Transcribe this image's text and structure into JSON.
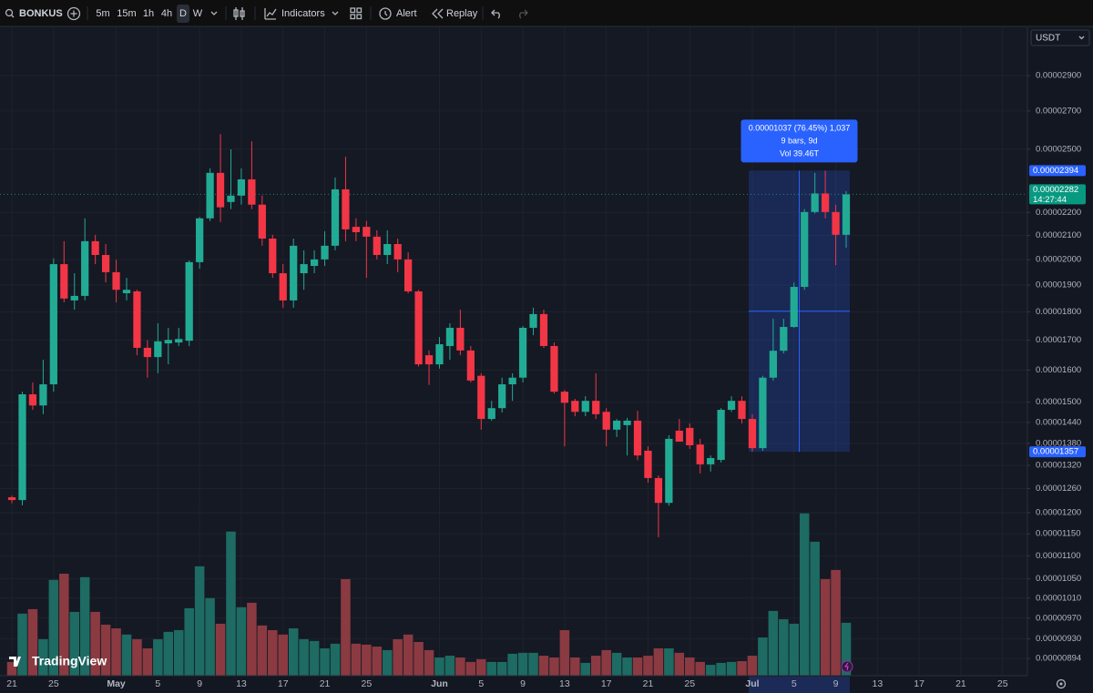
{
  "toolbar": {
    "symbol": "BONKUS",
    "intervals": [
      "5m",
      "15m",
      "1h",
      "4h",
      "D",
      "W"
    ],
    "active_interval": "D",
    "indicators": "Indicators",
    "alert": "Alert",
    "replay": "Replay"
  },
  "currency": "USDT",
  "logo": "TradingView",
  "chart_data": {
    "type": "candlestick",
    "log_scale": true,
    "grid": true,
    "up_color": "#22ab94",
    "down_color": "#f23645",
    "volume_up_color": "#1d6b63",
    "volume_down_color": "#8b3a41",
    "xlim": [
      -1.14,
      97.38
    ],
    "ylim": [
      8.635e-06,
      3.197e-05
    ],
    "xticks": [
      {
        "value": 0,
        "label": "21"
      },
      {
        "value": 4,
        "label": "25"
      },
      {
        "value": 10,
        "label": "May"
      },
      {
        "value": 14,
        "label": "5"
      },
      {
        "value": 18,
        "label": "9"
      },
      {
        "value": 22,
        "label": "13"
      },
      {
        "value": 26,
        "label": "17"
      },
      {
        "value": 30,
        "label": "21"
      },
      {
        "value": 34,
        "label": "25"
      },
      {
        "value": 41,
        "label": "Jun"
      },
      {
        "value": 45,
        "label": "5"
      },
      {
        "value": 49,
        "label": "9"
      },
      {
        "value": 53,
        "label": "13"
      },
      {
        "value": 57,
        "label": "17"
      },
      {
        "value": 61,
        "label": "21"
      },
      {
        "value": 65,
        "label": "25"
      },
      {
        "value": 71,
        "label": "Jul"
      },
      {
        "value": 75,
        "label": "5"
      },
      {
        "value": 79,
        "label": "9"
      },
      {
        "value": 83,
        "label": "13"
      },
      {
        "value": 87,
        "label": "17"
      },
      {
        "value": 91,
        "label": "21"
      },
      {
        "value": 95,
        "label": "25"
      }
    ],
    "yticks": [
      {
        "value": 2.9e-05,
        "label": "0.00002900"
      },
      {
        "value": 2.7e-05,
        "label": "0.00002700"
      },
      {
        "value": 2.5e-05,
        "label": "0.00002500"
      },
      {
        "value": 2.2e-05,
        "label": "0.00002200"
      },
      {
        "value": 2.1e-05,
        "label": "0.00002100"
      },
      {
        "value": 2e-05,
        "label": "0.00002000"
      },
      {
        "value": 1.9e-05,
        "label": "0.00001900"
      },
      {
        "value": 1.8e-05,
        "label": "0.00001800"
      },
      {
        "value": 1.7e-05,
        "label": "0.00001700"
      },
      {
        "value": 1.6e-05,
        "label": "0.00001600"
      },
      {
        "value": 1.5e-05,
        "label": "0.00001500"
      },
      {
        "value": 1.44e-05,
        "label": "0.00001440"
      },
      {
        "value": 1.38e-05,
        "label": "0.00001380"
      },
      {
        "value": 1.32e-05,
        "label": "0.00001320"
      },
      {
        "value": 1.26e-05,
        "label": "0.00001260"
      },
      {
        "value": 1.2e-05,
        "label": "0.00001200"
      },
      {
        "value": 1.15e-05,
        "label": "0.00001150"
      },
      {
        "value": 1.1e-05,
        "label": "0.00001100"
      },
      {
        "value": 1.05e-05,
        "label": "0.00001050"
      },
      {
        "value": 1.01e-05,
        "label": "0.00001010"
      },
      {
        "value": 9.7e-06,
        "label": "0.00000970"
      },
      {
        "value": 9.3e-06,
        "label": "0.00000930"
      },
      {
        "value": 8.94e-06,
        "label": "0.00000894"
      }
    ],
    "x": [
      0,
      1,
      2,
      3,
      4,
      5,
      6,
      7,
      8,
      9,
      10,
      11,
      12,
      13,
      14,
      15,
      16,
      17,
      18,
      19,
      20,
      21,
      22,
      23,
      24,
      25,
      26,
      27,
      28,
      29,
      30,
      31,
      32,
      33,
      34,
      35,
      36,
      37,
      38,
      39,
      40,
      41,
      42,
      43,
      44,
      45,
      46,
      47,
      48,
      49,
      50,
      51,
      52,
      53,
      54,
      55,
      56,
      57,
      58,
      59,
      60,
      61,
      62,
      63,
      64,
      65,
      66,
      67,
      68,
      69,
      70,
      71,
      72,
      73,
      74,
      75,
      76,
      77,
      78,
      79,
      80
    ],
    "open": [
      1.238e-05,
      1.231e-05,
      1.524e-05,
      1.49e-05,
      1.555e-05,
      1.982e-05,
      1.842e-05,
      1.859e-05,
      2.076e-05,
      2.019e-05,
      1.95e-05,
      1.869e-05,
      1.876e-05,
      1.674e-05,
      1.643e-05,
      1.689e-05,
      1.692e-05,
      1.698e-05,
      1.99e-05,
      2.174e-05,
      2.383e-05,
      2.247e-05,
      2.276e-05,
      2.352e-05,
      2.235e-05,
      2.087e-05,
      1.946e-05,
      1.842e-05,
      1.946e-05,
      1.975e-05,
      2.001e-05,
      2.057e-05,
      2.305e-05,
      2.137e-05,
      2.137e-05,
      2.095e-05,
      2.019e-05,
      2.064e-05,
      2.001e-05,
      1.876e-05,
      1.649e-05,
      1.619e-05,
      1.68e-05,
      1.743e-05,
      1.665e-05,
      1.582e-05,
      1.45e-05,
      1.482e-05,
      1.555e-05,
      1.576e-05,
      1.743e-05,
      1.792e-05,
      1.68e-05,
      1.532e-05,
      1.504e-05,
      1.471e-05,
      1.504e-05,
      1.471e-05,
      1.419e-05,
      1.432e-05,
      1.445e-05,
      1.36e-05,
      1.287e-05,
      1.224e-05,
      1.416e-05,
      1.424e-05,
      1.377e-05,
      1.323e-05,
      1.335e-05,
      1.477e-05,
      1.504e-05,
      1.45e-05,
      1.367e-05,
      1.576e-05,
      1.664e-05,
      1.746e-05,
      1.893e-05,
      2.202e-05,
      2.286e-05,
      2.202e-05,
      2.103e-05
    ],
    "high": [
      1.242e-05,
      1.532e-05,
      1.561e-05,
      1.634e-05,
      2.005e-05,
      2.076e-05,
      1.946e-05,
      2.174e-05,
      2.103e-05,
      2.064e-05,
      2e-05,
      1.928e-05,
      1.882e-05,
      1.7e-05,
      1.759e-05,
      1.743e-05,
      1.743e-05,
      1.997e-05,
      2.18e-05,
      2.405e-05,
      2.577e-05,
      2.499e-05,
      2.405e-05,
      2.54e-05,
      2.276e-05,
      2.103e-05,
      1.982e-05,
      2.087e-05,
      2.038e-05,
      2.038e-05,
      2.118e-05,
      2.361e-05,
      2.462e-05,
      2.174e-05,
      2.163e-05,
      2.122e-05,
      2.122e-05,
      2.087e-05,
      2.03e-05,
      1.882e-05,
      1.665e-05,
      1.711e-05,
      1.759e-05,
      1.808e-05,
      1.68e-05,
      1.59e-05,
      1.504e-05,
      1.576e-05,
      1.59e-05,
      1.749e-05,
      1.815e-05,
      1.808e-05,
      1.692e-05,
      1.537e-05,
      1.51e-05,
      1.518e-05,
      1.59e-05,
      1.482e-05,
      1.45e-05,
      1.453e-05,
      1.474e-05,
      1.372e-05,
      1.294e-05,
      1.403e-05,
      1.45e-05,
      1.437e-05,
      1.393e-05,
      1.347e-05,
      1.482e-05,
      1.518e-05,
      1.518e-05,
      1.464e-05,
      1.582e-05,
      1.775e-05,
      1.775e-05,
      1.91e-05,
      2.215e-05,
      2.383e-05,
      2.394e-05,
      2.235e-05,
      2.297e-05
    ],
    "low": [
      1.223e-05,
      1.218e-05,
      1.477e-05,
      1.464e-05,
      1.532e-05,
      1.835e-05,
      1.808e-05,
      1.842e-05,
      1.982e-05,
      1.91e-05,
      1.835e-05,
      1.842e-05,
      1.649e-05,
      1.576e-05,
      1.59e-05,
      1.619e-05,
      1.68e-05,
      1.68e-05,
      1.964e-05,
      2.162e-05,
      2.158e-05,
      2.215e-05,
      2.235e-05,
      2.215e-05,
      2.057e-05,
      1.928e-05,
      1.815e-05,
      1.815e-05,
      1.882e-05,
      1.946e-05,
      1.975e-05,
      2.038e-05,
      2.076e-05,
      2.076e-05,
      1.928e-05,
      2.001e-05,
      1.982e-05,
      1.95e-05,
      1.869e-05,
      1.612e-05,
      1.553e-05,
      1.605e-05,
      1.634e-05,
      1.649e-05,
      1.561e-05,
      1.419e-05,
      1.445e-05,
      1.469e-05,
      1.504e-05,
      1.561e-05,
      1.717e-05,
      1.674e-05,
      1.526e-05,
      1.372e-05,
      1.458e-05,
      1.458e-05,
      1.45e-05,
      1.372e-05,
      1.398e-05,
      1.347e-05,
      1.334e-05,
      1.275e-05,
      1.142e-05,
      1.217e-05,
      1.385e-05,
      1.365e-05,
      1.299e-05,
      1.304e-05,
      1.328e-05,
      1.471e-05,
      1.437e-05,
      1.357e-05,
      1.36e-05,
      1.567e-05,
      1.655e-05,
      1.743e-05,
      1.882e-05,
      2.195e-05,
      2.174e-05,
      1.978e-05,
      2.049e-05
    ],
    "close": [
      1.231e-05,
      1.524e-05,
      1.49e-05,
      1.555e-05,
      1.982e-05,
      1.849e-05,
      1.859e-05,
      2.076e-05,
      2.019e-05,
      1.95e-05,
      1.882e-05,
      1.882e-05,
      1.674e-05,
      1.643e-05,
      1.696e-05,
      1.701e-05,
      1.704e-05,
      1.99e-05,
      2.174e-05,
      2.383e-05,
      2.223e-05,
      2.276e-05,
      2.352e-05,
      2.235e-05,
      2.087e-05,
      1.946e-05,
      1.842e-05,
      2.057e-05,
      1.982e-05,
      2.001e-05,
      2.057e-05,
      2.305e-05,
      2.126e-05,
      2.114e-05,
      2.095e-05,
      2.019e-05,
      2.064e-05,
      2.001e-05,
      1.876e-05,
      1.619e-05,
      1.619e-05,
      1.686e-05,
      1.743e-05,
      1.665e-05,
      1.567e-05,
      1.45e-05,
      1.482e-05,
      1.555e-05,
      1.576e-05,
      1.743e-05,
      1.792e-05,
      1.68e-05,
      1.532e-05,
      1.498e-05,
      1.471e-05,
      1.504e-05,
      1.464e-05,
      1.419e-05,
      1.445e-05,
      1.445e-05,
      1.347e-05,
      1.287e-05,
      1.224e-05,
      1.393e-05,
      1.385e-05,
      1.375e-05,
      1.323e-05,
      1.34e-05,
      1.477e-05,
      1.504e-05,
      1.45e-05,
      1.367e-05,
      1.576e-05,
      1.664e-05,
      1.746e-05,
      1.893e-05,
      2.202e-05,
      2.286e-05,
      2.202e-05,
      2.103e-05,
      2.282e-05
    ],
    "volume": [
      0.71,
      3.2,
      3.43,
      1.88,
      4.94,
      5.26,
      3.29,
      5.08,
      3.29,
      2.63,
      2.44,
      2.12,
      1.88,
      1.41,
      1.88,
      2.26,
      2.35,
      3.48,
      5.64,
      4.0,
      2.68,
      7.43,
      3.53,
      3.76,
      2.59,
      2.35,
      2.12,
      2.44,
      1.88,
      1.79,
      1.41,
      1.65,
      4.98,
      1.65,
      1.6,
      1.5,
      1.32,
      1.88,
      2.12,
      1.74,
      1.32,
      0.94,
      1.03,
      0.94,
      0.71,
      0.85,
      0.71,
      0.71,
      1.13,
      1.18,
      1.18,
      1.03,
      0.94,
      2.35,
      0.94,
      0.66,
      1.03,
      1.32,
      1.18,
      0.94,
      0.94,
      1.03,
      1.41,
      1.41,
      1.18,
      0.94,
      0.71,
      0.56,
      0.66,
      0.71,
      0.75,
      1.03,
      1.97,
      3.34,
      2.91,
      2.68,
      8.37,
      6.91,
      4.98,
      5.45,
      2.73
    ],
    "measure": {
      "from": 71,
      "to": 80,
      "high": {
        "value": 2.394e-05,
        "label": "0.00002394"
      },
      "low": {
        "value": 1.357e-05,
        "label": "0.00001357"
      },
      "lines": [
        "0.00001037 (76.45%) 1,037",
        "9 bars, 9d",
        "Vol 39.46T"
      ]
    },
    "last_price": {
      "value": 2.282e-05,
      "label": "0.00002282"
    },
    "countdown": "14:27:44"
  }
}
